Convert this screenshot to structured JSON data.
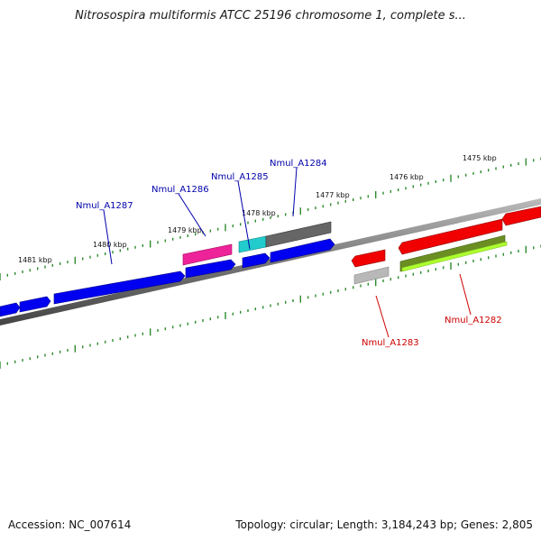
{
  "title": "Nitrosospira multiformis ATCC 25196 chromosome 1, complete s...",
  "footer": {
    "accession": "Accession: NC_007614",
    "summary": "Topology: circular; Length: 3,184,243 bp; Genes: 2,805"
  },
  "colors": {
    "background": "#ffffff",
    "backbone": "#7a7a7a",
    "ruler_ticks": "#2e8b2e",
    "gene_blue": "#0000f0",
    "gene_red": "#f00000",
    "gene_magenta": "#ee2299",
    "gene_cyan": "#22cccc",
    "gene_dark_gray": "#666666",
    "gene_light_gray": "#b8b8b8",
    "gene_olive": "#6b8e23",
    "gene_light_green": "#adff2f",
    "label_blue": "#0000aa",
    "label_red": "#cc0000"
  },
  "ruler": {
    "labels": [
      "1481 kbp",
      "1480 kbp",
      "1479 kbp",
      "1478 kbp",
      "1477 kbp",
      "1476 kbp",
      "1475 kbp"
    ]
  },
  "gene_labels": [
    "Nmul_A1287",
    "Nmul_A1286",
    "Nmul_A1285",
    "Nmul_A1284",
    "Nmul_A1283",
    "Nmul_A1282"
  ]
}
